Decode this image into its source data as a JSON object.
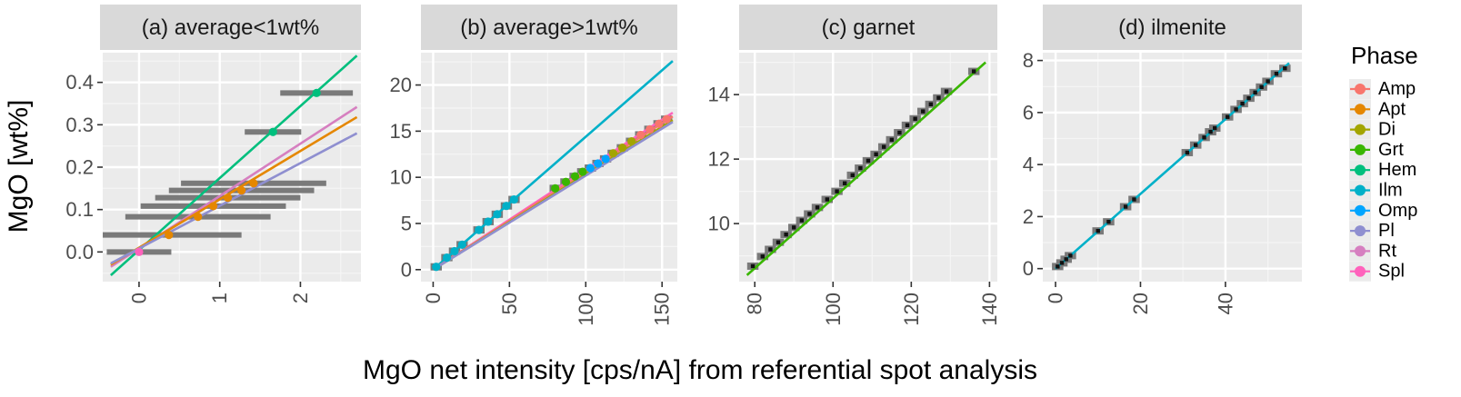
{
  "figure": {
    "ylabel": "MgO [wt%]",
    "xlabel": "MgO net intensity [cps/nA] from referential spot analysis",
    "legend": {
      "title": "Phase",
      "position": "right",
      "items": [
        {
          "name": "Amp",
          "color": "#F8766D"
        },
        {
          "name": "Apt",
          "color": "#E58700"
        },
        {
          "name": "Di",
          "color": "#A3A500"
        },
        {
          "name": "Grt",
          "color": "#39B600"
        },
        {
          "name": "Hem",
          "color": "#00BF7D"
        },
        {
          "name": "Ilm",
          "color": "#00B0C8"
        },
        {
          "name": "Omp",
          "color": "#00A5FF"
        },
        {
          "name": "Pl",
          "color": "#8F8FD0"
        },
        {
          "name": "Rt",
          "color": "#D67FC0"
        },
        {
          "name": "Spl",
          "color": "#FF62BC"
        }
      ]
    }
  },
  "chart_data": [
    {
      "type": "scatter",
      "title": "(a) average<1wt%",
      "xlim": [
        -0.45,
        2.75
      ],
      "ylim": [
        -0.07,
        0.47
      ],
      "x_ticks": [
        0,
        1,
        2
      ],
      "y_ticks": [
        0.0,
        0.1,
        0.2,
        0.3,
        0.4
      ],
      "grid": true,
      "lines": [
        {
          "phase": "Hem",
          "x": [
            -0.35,
            2.7
          ],
          "y": [
            -0.055,
            0.463
          ]
        },
        {
          "phase": "Rt",
          "x": [
            -0.35,
            2.7
          ],
          "y": [
            -0.035,
            0.342
          ]
        },
        {
          "phase": "Apt",
          "x": [
            -0.35,
            2.7
          ],
          "y": [
            -0.03,
            0.318
          ]
        },
        {
          "phase": "Pl",
          "x": [
            -0.35,
            2.7
          ],
          "y": [
            -0.027,
            0.28
          ]
        }
      ],
      "points": [
        {
          "phase": "Hem",
          "x": 2.2,
          "y": 0.375,
          "xerr": 0.45
        },
        {
          "phase": "Hem",
          "x": 1.66,
          "y": 0.283,
          "xerr": 0.35
        },
        {
          "phase": "Apt",
          "x": 1.42,
          "y": 0.162,
          "xerr": 0.9
        },
        {
          "phase": "Apt",
          "x": 1.27,
          "y": 0.145,
          "xerr": 0.9
        },
        {
          "phase": "Apt",
          "x": 1.1,
          "y": 0.128,
          "xerr": 0.9
        },
        {
          "phase": "Apt",
          "x": 0.92,
          "y": 0.108,
          "xerr": 0.9
        },
        {
          "phase": "Apt",
          "x": 0.73,
          "y": 0.083,
          "xerr": 0.9
        },
        {
          "phase": "Apt",
          "x": 0.37,
          "y": 0.04,
          "xerr": 0.9
        },
        {
          "phase": "Spl",
          "x": 0.0,
          "y": 0.0,
          "xerr": 0.4
        }
      ]
    },
    {
      "type": "scatter",
      "title": "(b) average>1wt%",
      "xlim": [
        -8,
        160
      ],
      "ylim": [
        -1.3,
        23.5
      ],
      "x_ticks": [
        0,
        50,
        100,
        150
      ],
      "y_ticks": [
        0,
        5,
        10,
        15,
        20
      ],
      "grid": true,
      "lines": [
        {
          "phase": "Ilm",
          "x": [
            0,
            157
          ],
          "y": [
            0,
            22.6
          ]
        },
        {
          "phase": "Spl",
          "x": [
            0,
            157
          ],
          "y": [
            0,
            17.0
          ]
        },
        {
          "phase": "Amp",
          "x": [
            0,
            157
          ],
          "y": [
            0,
            16.6
          ]
        },
        {
          "phase": "Di",
          "x": [
            0,
            157
          ],
          "y": [
            0,
            16.2
          ]
        },
        {
          "phase": "Pl",
          "x": [
            0,
            157
          ],
          "y": [
            0,
            16.0
          ]
        }
      ],
      "points": [
        {
          "phase": "Ilm",
          "x": 2,
          "y": 0.3
        },
        {
          "phase": "Ilm",
          "x": 9,
          "y": 1.3
        },
        {
          "phase": "Ilm",
          "x": 14,
          "y": 2.0
        },
        {
          "phase": "Ilm",
          "x": 19,
          "y": 2.7
        },
        {
          "phase": "Ilm",
          "x": 30,
          "y": 4.3
        },
        {
          "phase": "Ilm",
          "x": 36,
          "y": 5.2
        },
        {
          "phase": "Ilm",
          "x": 42,
          "y": 6.0
        },
        {
          "phase": "Ilm",
          "x": 48,
          "y": 6.9
        },
        {
          "phase": "Ilm",
          "x": 53,
          "y": 7.6
        },
        {
          "phase": "Grt",
          "x": 80,
          "y": 8.8
        },
        {
          "phase": "Grt",
          "x": 87,
          "y": 9.5
        },
        {
          "phase": "Grt",
          "x": 93,
          "y": 10.1
        },
        {
          "phase": "Grt",
          "x": 98,
          "y": 10.6
        },
        {
          "phase": "Omp",
          "x": 103,
          "y": 11.0
        },
        {
          "phase": "Omp",
          "x": 108,
          "y": 11.5
        },
        {
          "phase": "Omp",
          "x": 113,
          "y": 12.0
        },
        {
          "phase": "Di",
          "x": 118,
          "y": 12.6
        },
        {
          "phase": "Di",
          "x": 124,
          "y": 13.2
        },
        {
          "phase": "Di",
          "x": 130,
          "y": 13.9
        },
        {
          "phase": "Amp",
          "x": 136,
          "y": 14.6
        },
        {
          "phase": "Amp",
          "x": 142,
          "y": 15.2
        },
        {
          "phase": "Amp",
          "x": 148,
          "y": 15.8
        },
        {
          "phase": "Amp",
          "x": 153,
          "y": 16.3
        }
      ]
    },
    {
      "type": "scatter",
      "title": "(c) garnet",
      "xlim": [
        76,
        142
      ],
      "ylim": [
        8.2,
        15.3
      ],
      "x_ticks": [
        80,
        100,
        120,
        140
      ],
      "y_ticks": [
        10,
        12,
        14
      ],
      "grid": true,
      "lines": [
        {
          "phase": "Grt",
          "x": [
            78,
            139
          ],
          "y": [
            8.4,
            15.0
          ]
        }
      ],
      "points": [
        {
          "x": 79.5,
          "y": 8.68
        },
        {
          "x": 82,
          "y": 8.98
        },
        {
          "x": 84,
          "y": 9.2
        },
        {
          "x": 86,
          "y": 9.42
        },
        {
          "x": 88,
          "y": 9.66
        },
        {
          "x": 90,
          "y": 9.88
        },
        {
          "x": 92,
          "y": 10.1
        },
        {
          "x": 94,
          "y": 10.3
        },
        {
          "x": 96,
          "y": 10.5
        },
        {
          "x": 98.5,
          "y": 10.75
        },
        {
          "x": 101,
          "y": 11.0
        },
        {
          "x": 103,
          "y": 11.25
        },
        {
          "x": 105,
          "y": 11.5
        },
        {
          "x": 107,
          "y": 11.72
        },
        {
          "x": 109,
          "y": 11.95
        },
        {
          "x": 111,
          "y": 12.15
        },
        {
          "x": 113,
          "y": 12.38
        },
        {
          "x": 115,
          "y": 12.6
        },
        {
          "x": 117,
          "y": 12.82
        },
        {
          "x": 119,
          "y": 13.05
        },
        {
          "x": 121,
          "y": 13.25
        },
        {
          "x": 123,
          "y": 13.48
        },
        {
          "x": 125,
          "y": 13.7
        },
        {
          "x": 127,
          "y": 13.9
        },
        {
          "x": 129,
          "y": 14.1
        },
        {
          "x": 136,
          "y": 14.72
        }
      ]
    },
    {
      "type": "scatter",
      "title": "(d) ilmenite",
      "xlim": [
        -3,
        58
      ],
      "ylim": [
        -0.5,
        8.3
      ],
      "x_ticks": [
        0,
        20,
        40
      ],
      "y_ticks": [
        0,
        2,
        4,
        6,
        8
      ],
      "grid": true,
      "lines": [
        {
          "phase": "Ilm",
          "x": [
            0,
            55
          ],
          "y": [
            0,
            7.9
          ]
        }
      ],
      "points": [
        {
          "x": 0.5,
          "y": 0.08
        },
        {
          "x": 1.5,
          "y": 0.22
        },
        {
          "x": 2.5,
          "y": 0.36
        },
        {
          "x": 3.5,
          "y": 0.5
        },
        {
          "x": 10,
          "y": 1.45
        },
        {
          "x": 12.5,
          "y": 1.8
        },
        {
          "x": 16.5,
          "y": 2.38
        },
        {
          "x": 18.5,
          "y": 2.66
        },
        {
          "x": 31,
          "y": 4.46
        },
        {
          "x": 33,
          "y": 4.75
        },
        {
          "x": 35,
          "y": 5.04
        },
        {
          "x": 36.5,
          "y": 5.26
        },
        {
          "x": 37.5,
          "y": 5.4
        },
        {
          "x": 40.5,
          "y": 5.83
        },
        {
          "x": 42.5,
          "y": 6.12
        },
        {
          "x": 44,
          "y": 6.34
        },
        {
          "x": 45.5,
          "y": 6.55
        },
        {
          "x": 47,
          "y": 6.77
        },
        {
          "x": 48.5,
          "y": 6.98
        },
        {
          "x": 50,
          "y": 7.2
        },
        {
          "x": 52,
          "y": 7.49
        },
        {
          "x": 54,
          "y": 7.7
        }
      ]
    }
  ]
}
